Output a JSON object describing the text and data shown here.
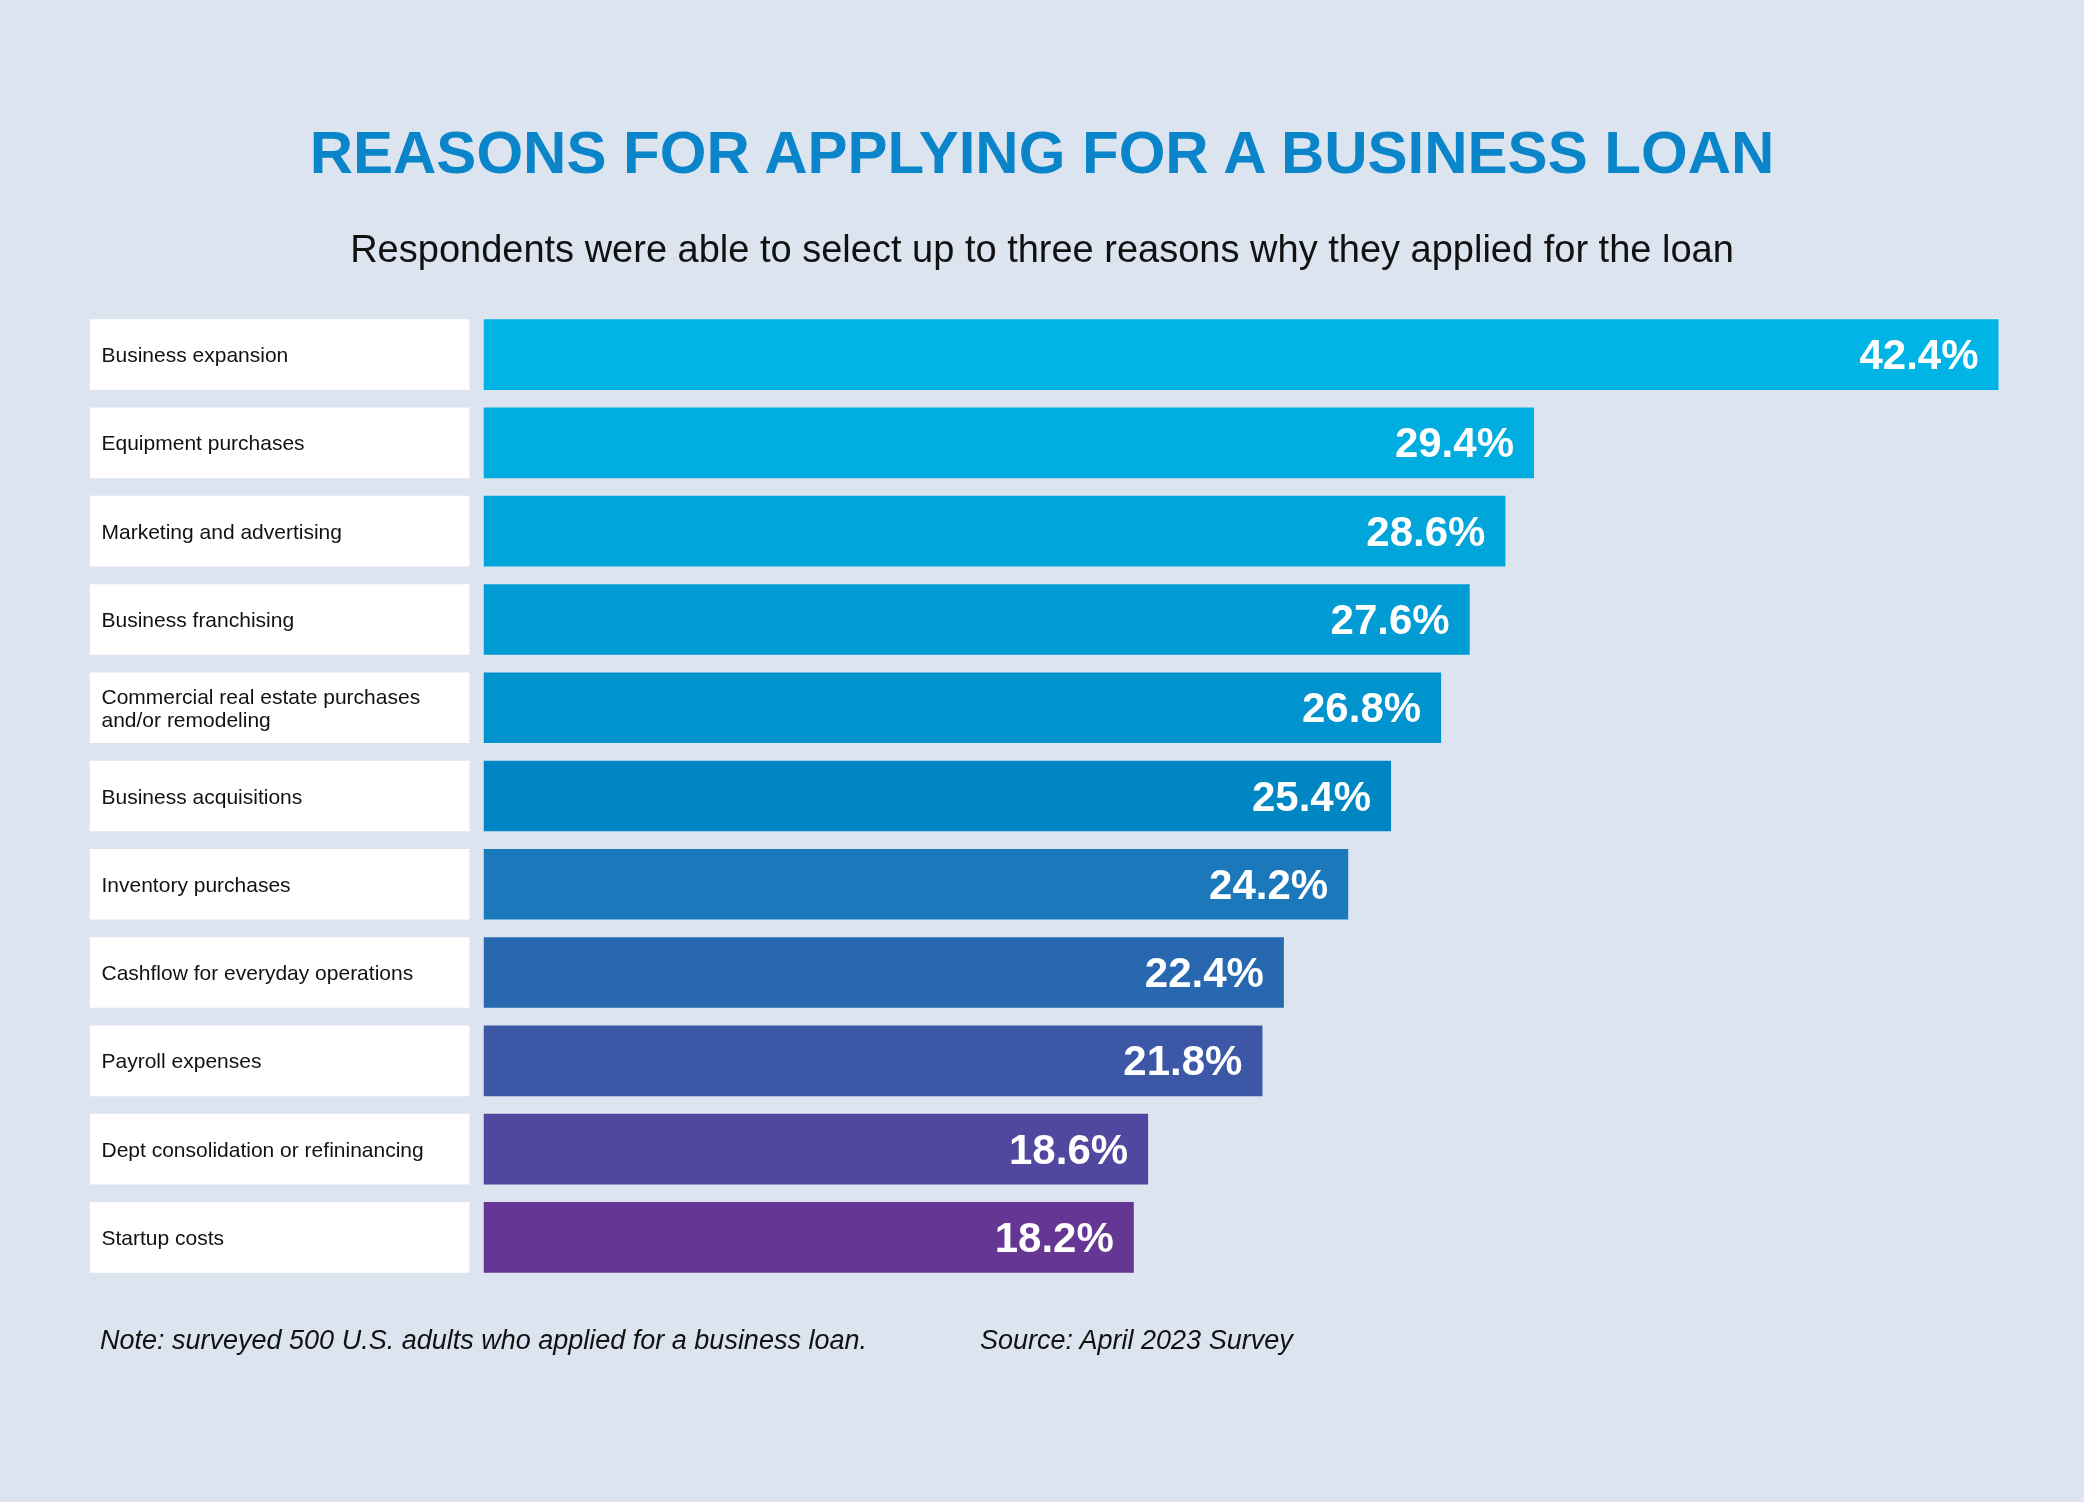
{
  "chart_data": {
    "type": "bar",
    "orientation": "horizontal",
    "title": "REASONS FOR APPLYING FOR A BUSINESS LOAN",
    "subtitle": "Respondents were able to select up to three reasons why they applied for the loan",
    "categories": [
      "Business expansion",
      "Equipment purchases",
      "Marketing and advertising",
      "Business franchising",
      "Commercial real estate purchases and/or remodeling",
      "Business acquisitions",
      "Inventory purchases",
      "Cashflow for everyday operations",
      "Payroll expenses",
      "Dept consolidation or refininancing",
      "Startup costs"
    ],
    "values": [
      42.4,
      29.4,
      28.6,
      27.6,
      26.8,
      25.4,
      24.2,
      22.4,
      21.8,
      18.6,
      18.2
    ],
    "colors": [
      "#00b5e6",
      "#00ade0",
      "#00a5da",
      "#009cd3",
      "#0093cd",
      "#0087c3",
      "#1a78bb",
      "#2868b0",
      "#3b57a6",
      "#52479e",
      "#653693"
    ],
    "value_labels": [
      "42.4%",
      "29.4%",
      "28.6%",
      "27.6%",
      "26.8%",
      "25.4%",
      "24.2%",
      "22.4%",
      "21.8%",
      "18.6%",
      "18.2%"
    ],
    "annotations": [
      "Note: surveyed 500 U.S. adults who applied for a business loan.",
      "Source: April 2023 Survey"
    ],
    "grid": false
  }
}
